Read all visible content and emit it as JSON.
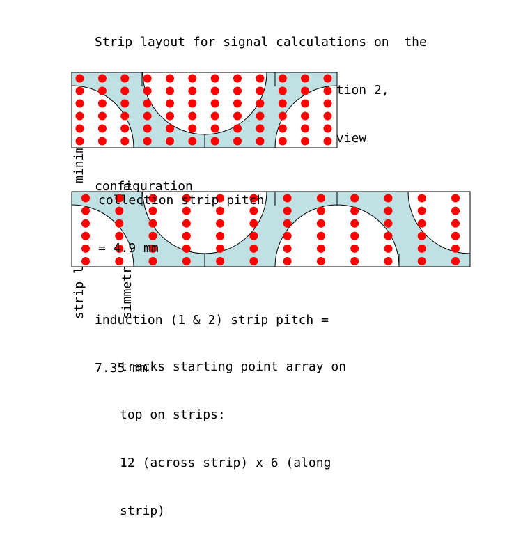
{
  "title_lines": [
    "Strip layout for signal calculations on  the",
    "three planes (induction 1, induction 2,",
    "collection) for teh Reference 3-view",
    "configuration"
  ],
  "vertical_label_lines": [
    "strip lentgh (for minimal",
    "simmetry) = 1.4 mm"
  ],
  "collection_label_lines": [
    "collection strip pitch",
    "= 4.9 mm"
  ],
  "induction_label_lines": [
    "induction (1 & 2) strip pitch =",
    "7.35 mm"
  ],
  "tracks_label_lines": [
    "tracks starting point array on",
    "top on strips:",
    "12 (across strip) x 6 (along",
    "strip)"
  ],
  "colors": {
    "strip_fill": "#bfe1e4",
    "hole_fill": "#ffffff",
    "outline": "#000000",
    "track_point": "#ff0000"
  },
  "track_grid": {
    "across": 12,
    "along": 6
  }
}
